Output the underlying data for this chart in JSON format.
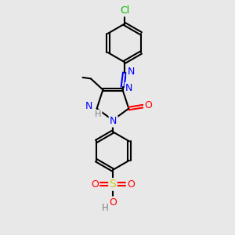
{
  "bg_color": "#e8e8e8",
  "bond_color": "#000000",
  "atom_colors": {
    "N": "#0000ff",
    "O": "#ff0000",
    "S": "#cccc00",
    "Cl": "#00bb00",
    "C": "#000000",
    "H": "#808080"
  },
  "bond_width": 1.5,
  "figsize": [
    3.0,
    3.0
  ],
  "dpi": 100,
  "xlim": [
    0,
    10
  ],
  "ylim": [
    0,
    10
  ]
}
